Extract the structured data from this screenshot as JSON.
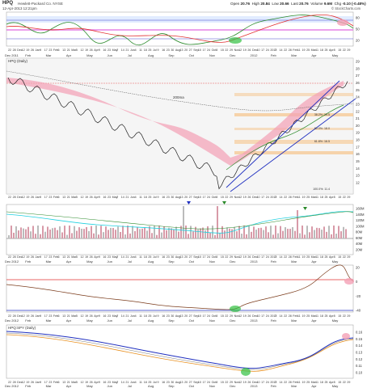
{
  "header": {
    "ticker": "HPQ",
    "company": "Hewlett-Packard Co. NYSE",
    "date": "12-Apr-2013 12:21pm",
    "open_label": "Open",
    "open": "20.76",
    "high_label": "High",
    "high": "20.84",
    "low_label": "Low",
    "low": "20.66",
    "last_label": "Last",
    "last": "20.76",
    "volume_label": "Volume",
    "volume": "9.6M",
    "chg_label": "Chg",
    "chg": "-0.10 (-0.48%)",
    "credit": "© StockCharts.com"
  },
  "panels": {
    "price_label": "HPQ (Daily)",
    "ma_label": "200ma",
    "indicator_label": "HPQ:SPY (Daily)"
  },
  "x_axis": {
    "ticks_top": [
      "22",
      "28",
      "Dec",
      "12",
      "19",
      "26",
      "Jan",
      "9",
      "17",
      "23",
      "Feb",
      "6",
      "13",
      "21",
      "Mar",
      "5",
      "12",
      "19",
      "26",
      "Apr",
      "9",
      "16",
      "23",
      "May",
      "7",
      "14",
      "21",
      "Jun",
      "4",
      "11",
      "18",
      "25",
      "Jul",
      "9",
      "16",
      "23",
      "30",
      "Aug",
      "13",
      "20",
      "27",
      "Sep",
      "10",
      "17",
      "24",
      "Oct",
      "8",
      "15",
      "22",
      "29",
      "Nov",
      "12",
      "19",
      "26",
      "Dec",
      "10",
      "17",
      "24",
      "2013",
      "7",
      "14",
      "22",
      "28",
      "Feb",
      "11",
      "19",
      "25",
      "Mar",
      "11",
      "18",
      "25",
      "Apr",
      "8",
      "15",
      "22",
      "29"
    ],
    "months": [
      "Dec 2011",
      "Feb",
      "Mar",
      "Apr",
      "May",
      "Jun",
      "Jul",
      "Aug",
      "Sep",
      "Oct",
      "Nov",
      "Dec",
      "2012",
      "Feb",
      "Mar",
      "Apr",
      "May"
    ],
    "months_bottom": [
      "Dec 2012",
      "Feb",
      "Mar",
      "Apr",
      "May",
      "Jun",
      "Jul",
      "Aug",
      "Sep",
      "Oct",
      "Nov",
      "Dec",
      "2013",
      "Feb",
      "Mar",
      "Apr",
      "May"
    ]
  },
  "price_axis": [
    "29",
    "28",
    "27",
    "26",
    "25",
    "24",
    "23",
    "22",
    "21",
    "20",
    "19",
    "18",
    "17",
    "16",
    "15",
    "14",
    "13",
    "12"
  ],
  "top_axis": [
    "80",
    "50",
    "20"
  ],
  "volume_axis": [
    "160M",
    "140M",
    "120M",
    "100M",
    "80M",
    "60M",
    "40M",
    "20M"
  ],
  "mid_axis": [
    "20",
    "0",
    "-20",
    "-40"
  ],
  "bottom_axis": [
    "0.16",
    "0.15",
    "0.14",
    "0.13",
    "0.12",
    "0.11",
    "0.10"
  ],
  "fib_labels": [
    "38.2%: 19.5",
    "50.0%: 18.0",
    "61.8%: 16.5",
    "100.0%: 11.4"
  ],
  "colors": {
    "pink_band": "#f4a0b5",
    "red_ma": "#e23030",
    "green_ma": "#2a8a2a",
    "blue_channel": "#2030c0",
    "orange_line": "#e89020",
    "cyan_line": "#20d0e0",
    "volume_bar": "#d89aa8",
    "brown_line": "#7a3a1a",
    "highlight_green": "#30c040"
  }
}
